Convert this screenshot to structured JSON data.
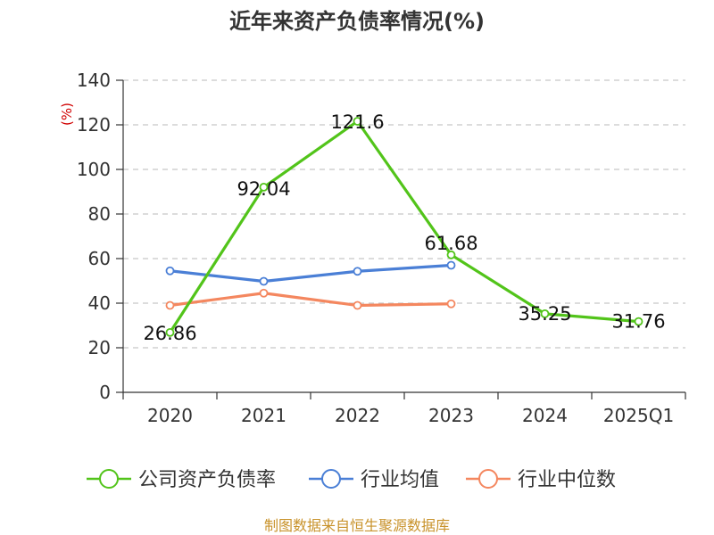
{
  "chart_data": {
    "type": "line",
    "title": "近年来资产负债率情况(%)",
    "ylabel": "(%)",
    "categories": [
      "2020",
      "2021",
      "2022",
      "2023",
      "2024",
      "2025Q1"
    ],
    "ylim": [
      0,
      140
    ],
    "yticks": [
      "0",
      "20",
      "40",
      "60",
      "80",
      "100",
      "120",
      "140"
    ],
    "grid": true,
    "legend_position": "bottom",
    "series": [
      {
        "name": "公司资产负债率",
        "color": "#52c41a",
        "values": [
          26.86,
          92.04,
          121.6,
          61.68,
          35.25,
          31.76
        ],
        "labels": [
          "26.86",
          "92.04",
          "121.6",
          "61.68",
          "35.25",
          "31.76"
        ]
      },
      {
        "name": "行业均值",
        "color": "#4a7fd6",
        "values": [
          54.5,
          49.8,
          54.3,
          57.0,
          null,
          null
        ]
      },
      {
        "name": "行业中位数",
        "color": "#f4875f",
        "values": [
          39.0,
          44.5,
          39.0,
          39.7,
          null,
          null
        ]
      }
    ]
  },
  "source": "制图数据来自恒生聚源数据库"
}
